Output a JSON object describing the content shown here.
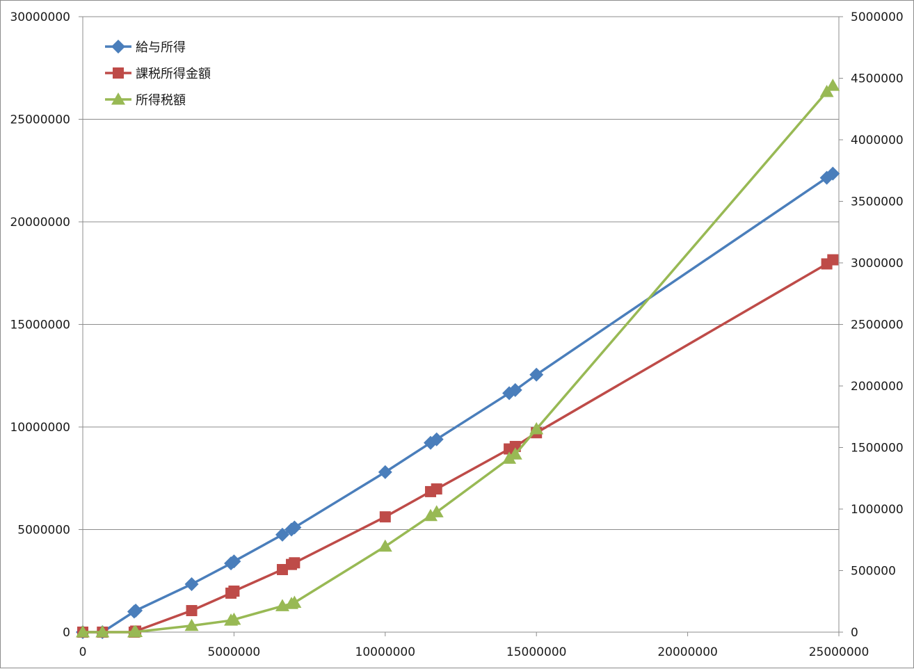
{
  "chart_data": {
    "type": "line",
    "title": "",
    "xlabel": "",
    "ylabel": "",
    "y2label": "",
    "grid": "horizontal major gridlines",
    "legend_position": "top-left",
    "xlim": [
      0,
      25000000
    ],
    "ylim": [
      0,
      30000000
    ],
    "y2lim": [
      0,
      5000000
    ],
    "x_ticks": [
      0,
      5000000,
      10000000,
      15000000,
      20000000,
      25000000
    ],
    "x_tick_labels": [
      "0",
      "5000000",
      "10000000",
      "15000000",
      "20000000",
      "25000000"
    ],
    "y_ticks": [
      0,
      5000000,
      10000000,
      15000000,
      20000000,
      25000000,
      30000000
    ],
    "y_tick_labels": [
      "0",
      "5000000",
      "10000000",
      "15000000",
      "20000000",
      "25000000",
      "30000000"
    ],
    "y2_ticks": [
      0,
      500000,
      1000000,
      1500000,
      2000000,
      2500000,
      3000000,
      3500000,
      4000000,
      4500000,
      5000000
    ],
    "y2_tick_labels": [
      "0",
      "500000",
      "1000000",
      "1500000",
      "2000000",
      "2500000",
      "3000000",
      "3500000",
      "4000000",
      "4500000",
      "5000000"
    ],
    "series": [
      {
        "name": "給与所得",
        "axis": "left",
        "color": "#4a7ebb",
        "marker": "diamond",
        "points": [
          [
            0,
            0
          ],
          [
            650000,
            0
          ],
          [
            1700000,
            1000000
          ],
          [
            1750000,
            1050000
          ],
          [
            3600000,
            2340000
          ],
          [
            4900000,
            3350000
          ],
          [
            5000000,
            3450000
          ],
          [
            6600000,
            4750000
          ],
          [
            6900000,
            5000000
          ],
          [
            7000000,
            5100000
          ],
          [
            10000000,
            7800000
          ],
          [
            11500000,
            9230000
          ],
          [
            11700000,
            9400000
          ],
          [
            14100000,
            11650000
          ],
          [
            14300000,
            11800000
          ],
          [
            15000000,
            12550000
          ],
          [
            24600000,
            22150000
          ],
          [
            24800000,
            22350000
          ]
        ]
      },
      {
        "name": "課税所得金額",
        "axis": "left",
        "color": "#be4b48",
        "marker": "square",
        "points": [
          [
            0,
            0
          ],
          [
            650000,
            0
          ],
          [
            1700000,
            0
          ],
          [
            1750000,
            50000
          ],
          [
            3600000,
            1050000
          ],
          [
            4900000,
            1900000
          ],
          [
            5000000,
            2000000
          ],
          [
            6600000,
            3050000
          ],
          [
            6900000,
            3300000
          ],
          [
            7000000,
            3380000
          ],
          [
            10000000,
            5620000
          ],
          [
            11500000,
            6850000
          ],
          [
            11700000,
            6980000
          ],
          [
            14100000,
            8930000
          ],
          [
            14300000,
            9050000
          ],
          [
            15000000,
            9720000
          ],
          [
            24600000,
            17950000
          ],
          [
            24800000,
            18150000
          ]
        ]
      },
      {
        "name": "所得税額",
        "axis": "right",
        "color": "#98b954",
        "marker": "triangle",
        "points": [
          [
            0,
            0
          ],
          [
            650000,
            0
          ],
          [
            1700000,
            0
          ],
          [
            1750000,
            2500
          ],
          [
            3600000,
            52500
          ],
          [
            4900000,
            95000
          ],
          [
            5000000,
            102500
          ],
          [
            6600000,
            212500
          ],
          [
            6900000,
            230000
          ],
          [
            7000000,
            240000
          ],
          [
            10000000,
            696000
          ],
          [
            11500000,
            945000
          ],
          [
            11700000,
            975000
          ],
          [
            14100000,
            1410000
          ],
          [
            14300000,
            1445000
          ],
          [
            15000000,
            1650000
          ],
          [
            24600000,
            4390000
          ],
          [
            24800000,
            4440000
          ]
        ]
      }
    ]
  }
}
